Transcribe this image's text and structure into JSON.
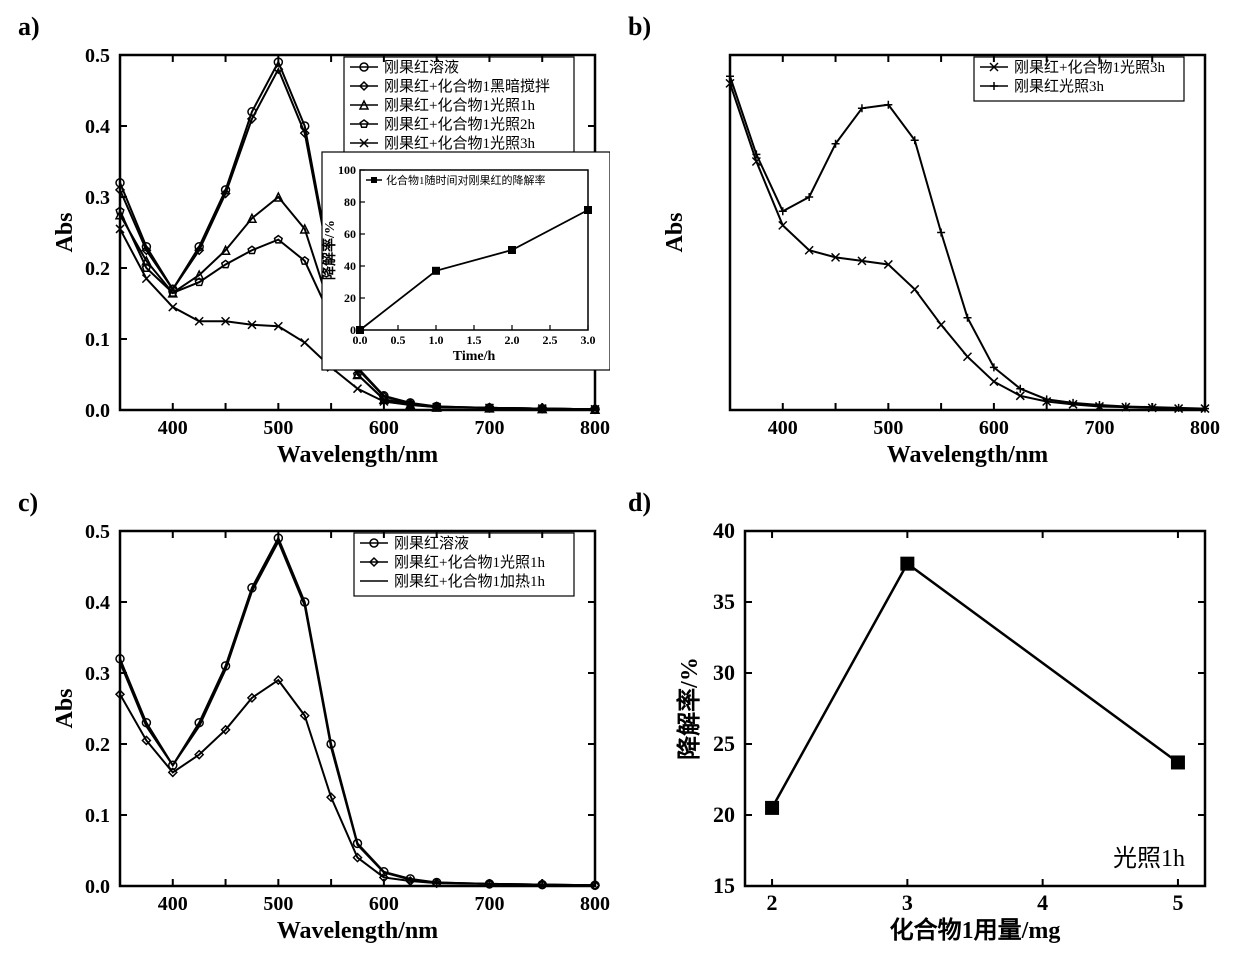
{
  "background_color": "#ffffff",
  "line_color": "#000000",
  "panels": {
    "a": {
      "label": "a)",
      "x_label": "Wavelength/nm",
      "y_label": "Abs",
      "xlim": [
        350,
        800
      ],
      "ylim": [
        0,
        0.5
      ],
      "xticks": [
        400,
        450,
        500,
        550,
        600,
        650,
        700,
        750,
        800
      ],
      "xtick_labels": [
        "400",
        "",
        "500",
        "",
        "600",
        "",
        "700",
        "",
        "800"
      ],
      "yticks": [
        0,
        0.1,
        0.2,
        0.3,
        0.4,
        0.5
      ],
      "ytick_labels": [
        "0.0",
        "0.1",
        "0.2",
        "0.3",
        "0.4",
        "0.5"
      ],
      "legend": [
        "刚果红溶液",
        "刚果红+化合物1黑暗搅拌",
        "刚果红+化合物1光照1h",
        "刚果红+化合物1光照2h",
        "刚果红+化合物1光照3h"
      ],
      "legend_markers": [
        "circle",
        "diamond",
        "triangle",
        "pentagon",
        "x"
      ],
      "series": [
        {
          "name": "s1",
          "marker": "circle",
          "x": [
            350,
            375,
            400,
            425,
            450,
            475,
            500,
            525,
            550,
            575,
            600,
            625,
            650,
            700,
            750,
            800
          ],
          "y": [
            0.32,
            0.23,
            0.17,
            0.23,
            0.31,
            0.42,
            0.49,
            0.4,
            0.2,
            0.06,
            0.02,
            0.01,
            0.005,
            0.003,
            0.002,
            0.001
          ]
        },
        {
          "name": "s2",
          "marker": "diamond",
          "x": [
            350,
            375,
            400,
            425,
            450,
            475,
            500,
            525,
            550,
            575,
            600,
            625,
            650,
            700,
            750,
            800
          ],
          "y": [
            0.31,
            0.225,
            0.17,
            0.225,
            0.305,
            0.41,
            0.48,
            0.39,
            0.195,
            0.058,
            0.019,
            0.009,
            0.005,
            0.003,
            0.002,
            0.001
          ]
        },
        {
          "name": "s3",
          "marker": "triangle",
          "x": [
            350,
            375,
            400,
            425,
            450,
            475,
            500,
            525,
            550,
            575,
            600,
            625,
            650,
            700,
            750,
            800
          ],
          "y": [
            0.275,
            0.21,
            0.165,
            0.19,
            0.225,
            0.27,
            0.3,
            0.255,
            0.14,
            0.05,
            0.015,
            0.008,
            0.004,
            0.003,
            0.002,
            0.001
          ]
        },
        {
          "name": "s4",
          "marker": "pentagon",
          "x": [
            350,
            375,
            400,
            425,
            450,
            475,
            500,
            525,
            550,
            575,
            600,
            625,
            650,
            700,
            750,
            800
          ],
          "y": [
            0.28,
            0.2,
            0.165,
            0.18,
            0.205,
            0.225,
            0.24,
            0.21,
            0.13,
            0.05,
            0.015,
            0.008,
            0.004,
            0.003,
            0.002,
            0.001
          ]
        },
        {
          "name": "s5",
          "marker": "x",
          "x": [
            350,
            375,
            400,
            425,
            450,
            475,
            500,
            525,
            550,
            575,
            600,
            625,
            650,
            700,
            750,
            800
          ],
          "y": [
            0.255,
            0.185,
            0.145,
            0.125,
            0.125,
            0.12,
            0.118,
            0.095,
            0.06,
            0.03,
            0.012,
            0.007,
            0.004,
            0.003,
            0.002,
            0.001
          ]
        }
      ],
      "inset": {
        "title": "化合物1随时间对刚果红的降解率",
        "x_label": "Time/h",
        "y_label": "降解率/%",
        "xlim": [
          0,
          3
        ],
        "ylim": [
          0,
          100
        ],
        "xticks": [
          0,
          0.5,
          1.0,
          1.5,
          2.0,
          2.5,
          3.0
        ],
        "xtick_labels": [
          "0.0",
          "0.5",
          "1.0",
          "1.5",
          "2.0",
          "2.5",
          "3.0"
        ],
        "yticks": [
          0,
          20,
          40,
          60,
          80,
          100
        ],
        "x": [
          0,
          1,
          2,
          3
        ],
        "y": [
          0,
          37,
          50,
          75
        ],
        "marker": "square"
      }
    },
    "b": {
      "label": "b)",
      "x_label": "Wavelength/nm",
      "y_label": "Abs",
      "xlim": [
        350,
        800
      ],
      "xticks": [
        400,
        450,
        500,
        550,
        600,
        650,
        700,
        750,
        800
      ],
      "xtick_labels": [
        "400",
        "",
        "500",
        "",
        "600",
        "",
        "700",
        "",
        "800"
      ],
      "legend": [
        "刚果红+化合物1光照3h",
        "刚果红光照3h"
      ],
      "legend_markers": [
        "x",
        "plus"
      ],
      "series": [
        {
          "name": "s1",
          "marker": "x",
          "x": [
            350,
            375,
            400,
            425,
            450,
            475,
            500,
            525,
            550,
            575,
            600,
            625,
            650,
            675,
            700,
            725,
            750,
            775,
            800
          ],
          "y": [
            0.46,
            0.35,
            0.26,
            0.225,
            0.215,
            0.21,
            0.205,
            0.17,
            0.12,
            0.075,
            0.04,
            0.02,
            0.012,
            0.008,
            0.005,
            0.004,
            0.003,
            0.002,
            0.002
          ]
        },
        {
          "name": "s2",
          "marker": "plus",
          "x": [
            350,
            375,
            400,
            425,
            450,
            475,
            500,
            525,
            550,
            575,
            600,
            625,
            650,
            675,
            700,
            725,
            750,
            775,
            800
          ],
          "y": [
            0.47,
            0.36,
            0.28,
            0.3,
            0.375,
            0.425,
            0.43,
            0.38,
            0.25,
            0.13,
            0.06,
            0.03,
            0.015,
            0.01,
            0.007,
            0.005,
            0.004,
            0.003,
            0.002
          ]
        }
      ],
      "y_approx_max": 0.5
    },
    "c": {
      "label": "c)",
      "x_label": "Wavelength/nm",
      "y_label": "Abs",
      "xlim": [
        350,
        800
      ],
      "ylim": [
        0,
        0.5
      ],
      "xticks": [
        400,
        450,
        500,
        550,
        600,
        650,
        700,
        750,
        800
      ],
      "xtick_labels": [
        "400",
        "",
        "500",
        "",
        "600",
        "",
        "700",
        "",
        "800"
      ],
      "yticks": [
        0,
        0.1,
        0.2,
        0.3,
        0.4,
        0.5
      ],
      "ytick_labels": [
        "0.0",
        "0.1",
        "0.2",
        "0.3",
        "0.4",
        "0.5"
      ],
      "legend": [
        "刚果红溶液",
        "刚果红+化合物1光照1h",
        "刚果红+化合物1加热1h"
      ],
      "legend_markers": [
        "circle",
        "diamond",
        "none"
      ],
      "series": [
        {
          "name": "s1",
          "marker": "circle",
          "x": [
            350,
            375,
            400,
            425,
            450,
            475,
            500,
            525,
            550,
            575,
            600,
            625,
            650,
            700,
            750,
            800
          ],
          "y": [
            0.32,
            0.23,
            0.17,
            0.23,
            0.31,
            0.42,
            0.49,
            0.4,
            0.2,
            0.06,
            0.02,
            0.01,
            0.005,
            0.003,
            0.002,
            0.001
          ]
        },
        {
          "name": "s2",
          "marker": "diamond",
          "x": [
            350,
            375,
            400,
            425,
            450,
            475,
            500,
            525,
            550,
            575,
            600,
            625,
            650,
            700,
            750,
            800
          ],
          "y": [
            0.27,
            0.205,
            0.16,
            0.185,
            0.22,
            0.265,
            0.29,
            0.24,
            0.125,
            0.04,
            0.012,
            0.007,
            0.004,
            0.003,
            0.002,
            0.001
          ]
        },
        {
          "name": "s3",
          "marker": "none",
          "x": [
            350,
            375,
            400,
            425,
            450,
            475,
            500,
            525,
            550,
            575,
            600,
            625,
            650,
            700,
            750,
            800
          ],
          "y": [
            0.315,
            0.225,
            0.17,
            0.225,
            0.305,
            0.415,
            0.485,
            0.395,
            0.195,
            0.058,
            0.019,
            0.009,
            0.005,
            0.003,
            0.002,
            0.001
          ]
        }
      ]
    },
    "d": {
      "label": "d)",
      "x_label": "化合物1用量/mg",
      "y_label": "降解率/%",
      "xlim": [
        1.8,
        5.2
      ],
      "ylim": [
        15,
        40
      ],
      "xticks": [
        2,
        3,
        4,
        5
      ],
      "xtick_labels": [
        "2",
        "3",
        "4",
        "5"
      ],
      "yticks": [
        15,
        20,
        25,
        30,
        35,
        40
      ],
      "ytick_labels": [
        "15",
        "20",
        "25",
        "30",
        "35",
        "40"
      ],
      "x": [
        2,
        3,
        5
      ],
      "y": [
        20.5,
        37.7,
        23.7
      ],
      "marker": "square",
      "annotation": "光照1h"
    }
  }
}
